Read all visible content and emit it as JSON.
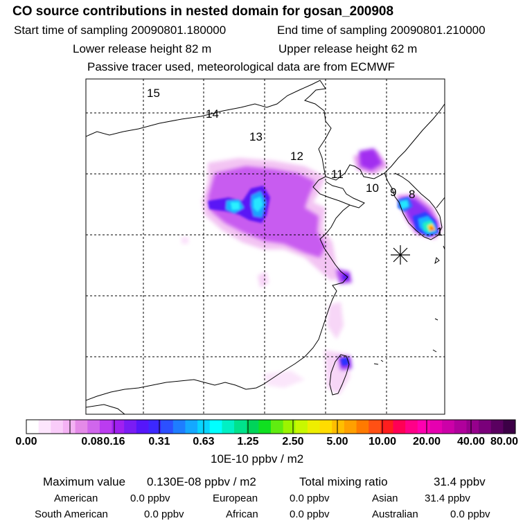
{
  "header": {
    "title": "CO  source contributions in nested domain for gosan_200908",
    "start_time": "Start time of sampling 20090801.180000",
    "end_time": "End time of sampling 20090801.210000",
    "lower_height": "Lower release height   82 m",
    "upper_height": "Upper release height   62 m",
    "tracer_note": "Passive tracer used, meteorological data are from ECMWF"
  },
  "map": {
    "trajectory_labels": [
      "1",
      "8",
      "9",
      "10",
      "11",
      "12",
      "13",
      "14",
      "15"
    ],
    "receptor_marker": "gosan-site-marker"
  },
  "colorbar": {
    "colors": [
      "#ffffff",
      "#fde6fd",
      "#f9ccf9",
      "#f4b2f4",
      "#e48ae8",
      "#d066ec",
      "#bb3cf0",
      "#a020f0",
      "#7a1cf4",
      "#5516fa",
      "#3c28ff",
      "#2c50ff",
      "#1e7dff",
      "#14a8ff",
      "#08d4ff",
      "#00ffff",
      "#00f0c4",
      "#00e28c",
      "#00d45a",
      "#10e020",
      "#60ec10",
      "#9cf400",
      "#c8f800",
      "#eeee00",
      "#ffdc00",
      "#ffbe00",
      "#ffa000",
      "#ff7a00",
      "#ff5014",
      "#ff1e1e",
      "#ff0055",
      "#ff0088",
      "#ff00b0",
      "#e600b0",
      "#cc00a8",
      "#b0009c",
      "#96008c",
      "#7a007a",
      "#5a0060",
      "#3c0046"
    ],
    "tick_labels": [
      "0.00",
      "0.08",
      "0.16",
      "0.31",
      "0.63",
      "1.25",
      "2.50",
      "5.00",
      "10.00",
      "20.00",
      "40.00",
      "80.00"
    ],
    "units": "10E-10 ppbv / m2"
  },
  "summary": {
    "max_label": "Maximum value",
    "max_value": "0.130E-08 ppbv / m2",
    "total_label": "Total mixing ratio",
    "total_value": "31.4 ppbv"
  },
  "regions": [
    {
      "name": "American",
      "value": "0.0 ppbv"
    },
    {
      "name": "European",
      "value": "0.0 ppbv"
    },
    {
      "name": "Asian",
      "value": "31.4 ppbv"
    },
    {
      "name": "South American",
      "value": "0.0 ppbv"
    },
    {
      "name": "African",
      "value": "0.0 ppbv"
    },
    {
      "name": "Australian",
      "value": "0.0 ppbv"
    }
  ]
}
